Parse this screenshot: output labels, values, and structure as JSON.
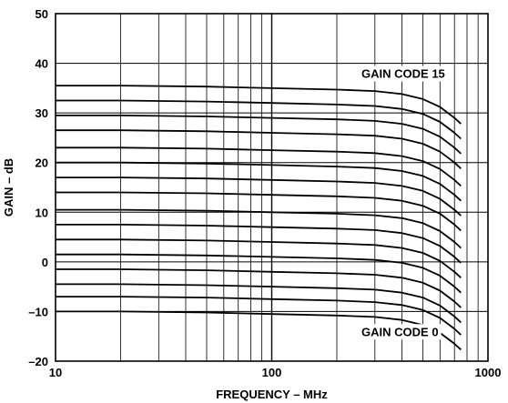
{
  "chart_data": {
    "type": "line",
    "xlabel": "FREQUENCY – MHz",
    "ylabel": "GAIN – dB",
    "xscale": "log",
    "xlim": [
      10,
      1000
    ],
    "ylim": [
      -20,
      50
    ],
    "xticks": [
      10,
      100,
      1000
    ],
    "xtick_labels": [
      "10",
      "100",
      "1000"
    ],
    "yticks": [
      -20,
      -10,
      0,
      10,
      20,
      30,
      40,
      50
    ],
    "ytick_labels": [
      "–20",
      "–10",
      "0",
      "10",
      "20",
      "30",
      "40",
      "50"
    ],
    "grid": true,
    "annotations": [
      {
        "text": "GAIN CODE 15",
        "x": 260,
        "y": 38
      },
      {
        "text": "GAIN CODE 0",
        "x": 260,
        "y": -14
      }
    ],
    "x": [
      10,
      20,
      50,
      100,
      200,
      300,
      400,
      500,
      600,
      700,
      750
    ],
    "series": [
      {
        "values": [
          35.5,
          35.5,
          35.3,
          35.0,
          34.7,
          34.4,
          33.8,
          32.8,
          31.2,
          29.0,
          27.8
        ]
      },
      {
        "values": [
          32.5,
          32.5,
          32.3,
          32.0,
          31.7,
          31.4,
          30.8,
          29.8,
          28.2,
          26.0,
          24.8
        ]
      },
      {
        "values": [
          29.5,
          29.5,
          29.3,
          29.0,
          28.7,
          28.4,
          27.8,
          26.8,
          25.2,
          23.0,
          21.8
        ]
      },
      {
        "values": [
          26.5,
          26.5,
          26.3,
          26.0,
          25.7,
          25.4,
          24.8,
          23.8,
          22.2,
          20.0,
          18.8
        ]
      },
      {
        "values": [
          23.0,
          23.0,
          22.8,
          22.5,
          22.2,
          21.9,
          21.3,
          20.3,
          18.7,
          16.5,
          15.3
        ]
      },
      {
        "values": [
          20.0,
          20.0,
          19.8,
          19.5,
          19.2,
          18.9,
          18.3,
          17.3,
          15.7,
          13.5,
          12.3
        ]
      },
      {
        "values": [
          17.0,
          17.0,
          16.8,
          16.5,
          16.2,
          15.9,
          15.3,
          14.3,
          12.7,
          10.5,
          9.3
        ]
      },
      {
        "values": [
          14.0,
          14.0,
          13.8,
          13.5,
          13.2,
          12.9,
          12.3,
          11.3,
          9.7,
          7.5,
          6.3
        ]
      },
      {
        "values": [
          10.5,
          10.5,
          10.3,
          10.0,
          9.7,
          9.4,
          8.8,
          7.8,
          6.2,
          4.0,
          2.8
        ]
      },
      {
        "values": [
          7.5,
          7.5,
          7.3,
          7.0,
          6.7,
          6.4,
          5.8,
          4.8,
          3.2,
          1.0,
          -0.2
        ]
      },
      {
        "values": [
          4.5,
          4.5,
          4.3,
          4.0,
          3.7,
          3.4,
          2.8,
          1.8,
          0.2,
          -2.0,
          -3.2
        ]
      },
      {
        "values": [
          1.5,
          1.5,
          1.3,
          1.0,
          0.7,
          0.4,
          -0.2,
          -1.2,
          -2.8,
          -5.0,
          -6.2
        ]
      },
      {
        "values": [
          -1.5,
          -1.5,
          -1.7,
          -2.0,
          -2.3,
          -2.6,
          -3.2,
          -4.2,
          -5.8,
          -8.0,
          -9.2
        ]
      },
      {
        "values": [
          -4.5,
          -4.5,
          -4.7,
          -5.0,
          -5.3,
          -5.6,
          -6.2,
          -7.2,
          -8.8,
          -11.0,
          -12.2
        ]
      },
      {
        "values": [
          -7.0,
          -7.0,
          -7.2,
          -7.5,
          -7.8,
          -8.1,
          -8.7,
          -9.7,
          -11.3,
          -13.5,
          -14.7
        ]
      },
      {
        "values": [
          -10.0,
          -10.0,
          -10.2,
          -10.5,
          -10.8,
          -11.1,
          -11.7,
          -12.7,
          -14.3,
          -16.5,
          -17.7
        ]
      }
    ]
  }
}
